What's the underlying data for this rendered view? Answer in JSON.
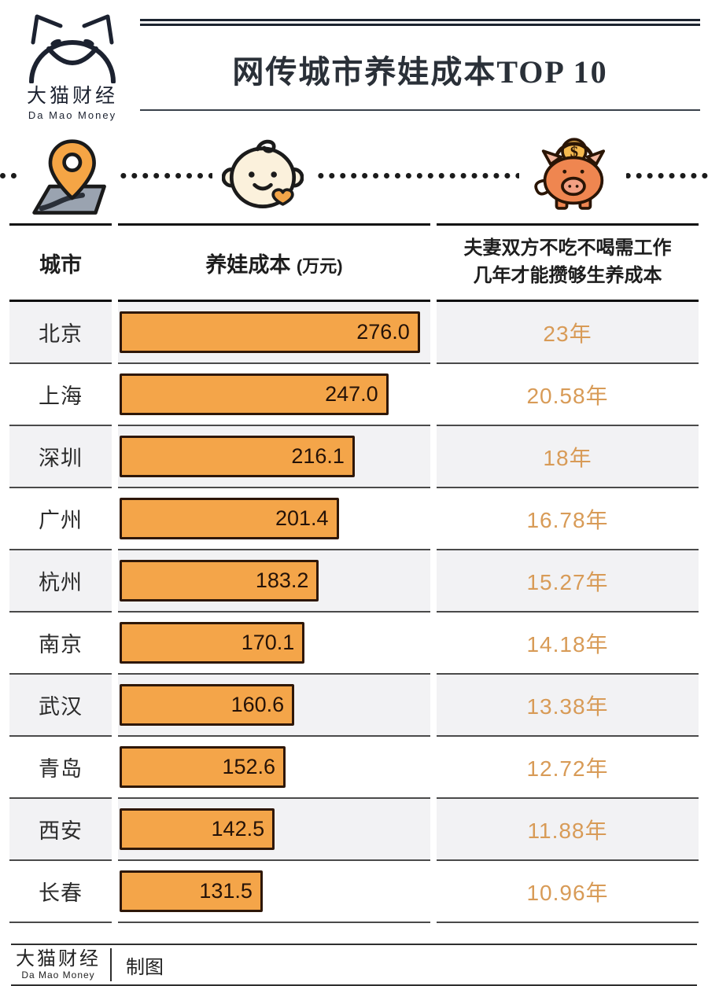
{
  "logo": {
    "name_cn": "大猫财经",
    "name_en": "Da Mao Money"
  },
  "title": "网传城市养娃成本TOP 10",
  "icons": {
    "pin": "map-location-pin",
    "baby": "baby-face",
    "piggy": "piggy-bank-coin"
  },
  "table": {
    "headers": {
      "city": "城市",
      "cost": "养娃成本",
      "cost_unit": "(万元)",
      "years_line1": "夫妻双方不吃不喝需工作",
      "years_line2": "几年才能攒够生养成本"
    },
    "rows": [
      {
        "city": "北京",
        "cost": "276.0",
        "years": "23年"
      },
      {
        "city": "上海",
        "cost": "247.0",
        "years": "20.58年"
      },
      {
        "city": "深圳",
        "cost": "216.1",
        "years": "18年"
      },
      {
        "city": "广州",
        "cost": "201.4",
        "years": "16.78年"
      },
      {
        "city": "杭州",
        "cost": "183.2",
        "years": "15.27年"
      },
      {
        "city": "南京",
        "cost": "170.1",
        "years": "14.18年"
      },
      {
        "city": "武汉",
        "cost": "160.6",
        "years": "13.38年"
      },
      {
        "city": "青岛",
        "cost": "152.6",
        "years": "12.72年"
      },
      {
        "city": "西安",
        "cost": "142.5",
        "years": "11.88年"
      },
      {
        "city": "长春",
        "cost": "131.5",
        "years": "10.96年"
      }
    ]
  },
  "footer": {
    "logo_cn": "大猫财经",
    "logo_en": "Da Mao Money",
    "credit": "制图"
  },
  "colors": {
    "bar_fill": "#f4a549",
    "bar_border": "#2e1708",
    "year_text": "#d89b57",
    "row_alt_bg": "#f2f2f4",
    "rule_dark": "#1d2430"
  },
  "chart_data": {
    "type": "bar",
    "orientation": "horizontal",
    "title": "网传城市养娃成本TOP 10",
    "categories": [
      "北京",
      "上海",
      "深圳",
      "广州",
      "杭州",
      "南京",
      "武汉",
      "青岛",
      "西安",
      "长春"
    ],
    "series": [
      {
        "name": "养娃成本(万元)",
        "values": [
          276.0,
          247.0,
          216.1,
          201.4,
          183.2,
          170.1,
          160.6,
          152.6,
          142.5,
          131.5
        ]
      },
      {
        "name": "夫妻双方不吃不喝需工作几年才能攒够生养成本(年)",
        "values": [
          23,
          20.58,
          18,
          16.78,
          15.27,
          14.18,
          13.38,
          12.72,
          11.88,
          10.96
        ]
      }
    ],
    "xlabel": "养娃成本(万元)",
    "ylabel": "城市",
    "xmax": 287,
    "grid": false,
    "legend_position": "none",
    "value_labels": "inside-bar-right"
  }
}
